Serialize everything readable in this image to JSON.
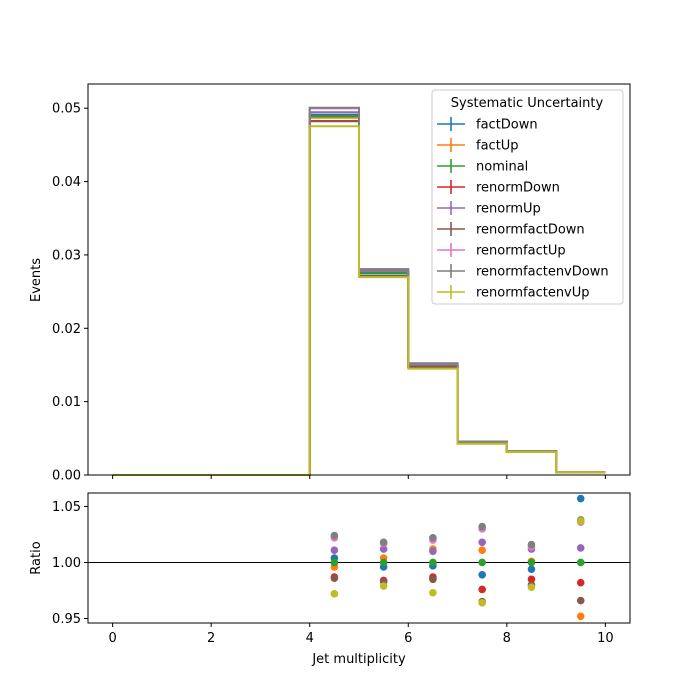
{
  "chart_data": [
    {
      "panel": "main",
      "type": "line",
      "step": "post",
      "xlabel": "",
      "ylabel": "Events",
      "xlim": [
        -0.5,
        10.5
      ],
      "ylim": [
        0,
        0.0533
      ],
      "xticks": [
        0,
        2,
        4,
        6,
        8,
        10
      ],
      "xtick_labels_shown": false,
      "yticks": [
        0.0,
        0.01,
        0.02,
        0.03,
        0.04,
        0.05
      ],
      "ytick_labels": [
        "0.00",
        "0.01",
        "0.02",
        "0.03",
        "0.04",
        "0.05"
      ],
      "bin_edges": [
        0,
        1,
        2,
        3,
        4,
        5,
        6,
        7,
        8,
        9,
        10
      ],
      "legend": {
        "title": "Systematic Uncertainty",
        "placement": "top-right"
      },
      "series": [
        {
          "name": "factDown",
          "color": "#1f77b4",
          "values": [
            0,
            0,
            0,
            0,
            0.0491,
            0.02746,
            0.01486,
            0.00438,
            0.00321,
            0.00039
          ]
        },
        {
          "name": "factUp",
          "color": "#ff7f0e",
          "values": [
            0,
            0,
            0,
            0,
            0.0487,
            0.02769,
            0.01504,
            0.00447,
            0.00323,
            0.00035
          ]
        },
        {
          "name": "nominal",
          "color": "#2ca02c",
          "values": [
            0,
            0,
            0,
            0,
            0.0489,
            0.02757,
            0.0149,
            0.00443,
            0.00323,
            0.00037
          ]
        },
        {
          "name": "renormDown",
          "color": "#d62728",
          "values": [
            0,
            0,
            0,
            0,
            0.04826,
            0.02713,
            0.0147,
            0.00432,
            0.00318,
            0.00036
          ]
        },
        {
          "name": "renormUp",
          "color": "#9467bd",
          "values": [
            0,
            0,
            0,
            0,
            0.04945,
            0.02788,
            0.01507,
            0.00451,
            0.00327,
            0.000375
          ]
        },
        {
          "name": "renormfactDown",
          "color": "#8c564b",
          "values": [
            0,
            0,
            0,
            0,
            0.04822,
            0.02711,
            0.01469,
            0.00427,
            0.00316,
            0.00036
          ]
        },
        {
          "name": "renormfactUp",
          "color": "#e377c2",
          "values": [
            0,
            0,
            0,
            0,
            0.04998,
            0.02806,
            0.0152,
            0.00456,
            0.00328,
            0.00038
          ]
        },
        {
          "name": "renormfactenvDown",
          "color": "#7f7f7f",
          "values": [
            0,
            0,
            0,
            0,
            0.05007,
            0.02807,
            0.01523,
            0.00457,
            0.00328,
            0.00038
          ]
        },
        {
          "name": "renormfactenvUp",
          "color": "#bcbd22",
          "values": [
            0,
            0,
            0,
            0,
            0.04754,
            0.02698,
            0.0145,
            0.00427,
            0.00315,
            0.00038
          ]
        }
      ]
    },
    {
      "panel": "ratio",
      "type": "scatter",
      "xlabel": "Jet multiplicity",
      "ylabel": "Ratio",
      "xlim": [
        -0.5,
        10.5
      ],
      "ylim": [
        0.946,
        1.062
      ],
      "xticks": [
        0,
        2,
        4,
        6,
        8,
        10
      ],
      "xtick_labels": [
        "0",
        "2",
        "4",
        "6",
        "8",
        "10"
      ],
      "yticks": [
        0.95,
        1.0,
        1.05
      ],
      "ytick_labels": [
        "0.95",
        "1.00",
        "1.05"
      ],
      "reference_line": 1.0,
      "x": [
        4.5,
        5.5,
        6.5,
        7.5,
        8.5,
        9.5
      ],
      "series": [
        {
          "name": "factDown",
          "color": "#1f77b4",
          "values": [
            1.004,
            0.996,
            0.997,
            0.989,
            0.994,
            1.057
          ]
        },
        {
          "name": "factUp",
          "color": "#ff7f0e",
          "values": [
            0.996,
            1.004,
            1.012,
            1.011,
            1.001,
            0.952
          ]
        },
        {
          "name": "nominal",
          "color": "#2ca02c",
          "values": [
            1.0,
            1.0,
            1.0,
            1.0,
            1.0,
            1.0
          ]
        },
        {
          "name": "renormDown",
          "color": "#d62728",
          "values": [
            0.987,
            0.984,
            0.987,
            0.976,
            0.985,
            0.982
          ]
        },
        {
          "name": "renormUp",
          "color": "#9467bd",
          "values": [
            1.011,
            1.012,
            1.01,
            1.018,
            1.012,
            1.013
          ]
        },
        {
          "name": "renormfactDown",
          "color": "#8c564b",
          "values": [
            0.986,
            0.983,
            0.985,
            0.965,
            0.98,
            0.966
          ]
        },
        {
          "name": "renormfactUp",
          "color": "#e377c2",
          "values": [
            1.022,
            1.017,
            1.02,
            1.03,
            1.014,
            1.036
          ]
        },
        {
          "name": "renormfactenvDown",
          "color": "#7f7f7f",
          "values": [
            1.024,
            1.018,
            1.022,
            1.032,
            1.016,
            1.038
          ]
        },
        {
          "name": "renormfactenvUp",
          "color": "#bcbd22",
          "values": [
            0.972,
            0.979,
            0.973,
            0.964,
            0.978,
            1.037
          ]
        }
      ]
    }
  ]
}
